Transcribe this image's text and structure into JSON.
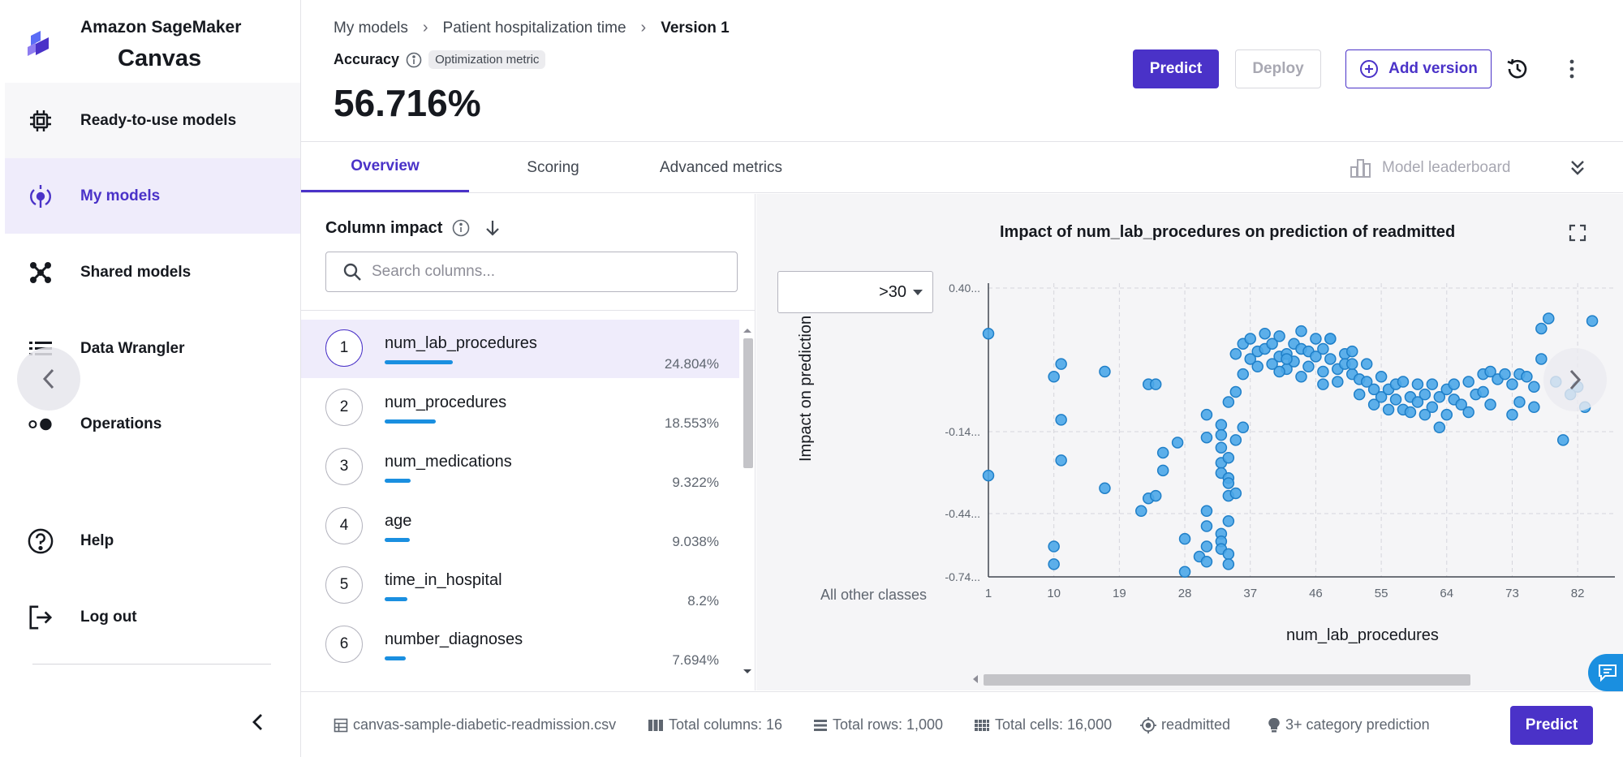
{
  "brand": {
    "line1": "Amazon SageMaker",
    "line2": "Canvas"
  },
  "sidebar": {
    "items": [
      {
        "label": "Ready-to-use models",
        "icon": "chip-icon"
      },
      {
        "label": "My models",
        "icon": "my-models-icon"
      },
      {
        "label": "Shared models",
        "icon": "shared-models-icon"
      },
      {
        "label": "Data Wrangler",
        "icon": "data-wrangler-icon"
      },
      {
        "label": "Operations",
        "icon": "toggle-icon"
      },
      {
        "label": "Help",
        "icon": "help-icon"
      },
      {
        "label": "Log out",
        "icon": "logout-icon"
      }
    ]
  },
  "header": {
    "breadcrumb": [
      "My models",
      "Patient hospitalization time",
      "Version 1"
    ],
    "metric_label": "Accuracy",
    "metric_badge": "Optimization metric",
    "metric_value": "56.716%",
    "predict_label": "Predict",
    "deploy_label": "Deploy",
    "add_version_label": "Add version"
  },
  "tabs": {
    "overview": "Overview",
    "scoring": "Scoring",
    "advanced": "Advanced metrics",
    "leaderboard": "Model leaderboard"
  },
  "impact": {
    "title": "Column impact",
    "search_placeholder": "Search columns...",
    "columns": [
      {
        "rank": "1",
        "name": "num_lab_procedures",
        "pct": "24.804%",
        "value": 24.804
      },
      {
        "rank": "2",
        "name": "num_procedures",
        "pct": "18.553%",
        "value": 18.553
      },
      {
        "rank": "3",
        "name": "num_medications",
        "pct": "9.322%",
        "value": 9.322
      },
      {
        "rank": "4",
        "name": "age",
        "pct": "9.038%",
        "value": 9.038
      },
      {
        "rank": "5",
        "name": "time_in_hospital",
        "pct": "8.2%",
        "value": 8.2
      },
      {
        "rank": "6",
        "name": "number_diagnoses",
        "pct": "7.694%",
        "value": 7.694
      }
    ]
  },
  "chart": {
    "select_value": ">30",
    "other_classes": "All other classes"
  },
  "chart_data": {
    "type": "scatter",
    "title": "Impact of num_lab_procedures on prediction of readmitted",
    "xlabel": "num_lab_procedures",
    "ylabel": "Impact on prediction",
    "xlim": [
      1,
      86
    ],
    "ylim": [
      -0.74,
      0.4
    ],
    "x_ticks": [
      "1",
      "10",
      "19",
      "28",
      "37",
      "46",
      "55",
      "64",
      "73",
      "82"
    ],
    "y_ticks": [
      "0.40...",
      "-0.14...",
      "-0.44...",
      "-0.74..."
    ],
    "grid": true,
    "series": [
      {
        "points": [
          [
            1,
            0.22
          ],
          [
            1,
            -0.34
          ],
          [
            10,
            -0.62
          ],
          [
            10,
            -0.69
          ],
          [
            10,
            0.05
          ],
          [
            11,
            0.1
          ],
          [
            11,
            -0.12
          ],
          [
            11,
            -0.28
          ],
          [
            17,
            0.07
          ],
          [
            17,
            -0.39
          ],
          [
            23,
            0.02
          ],
          [
            24,
            0.02
          ],
          [
            22,
            -0.48
          ],
          [
            23,
            -0.43
          ],
          [
            24,
            -0.42
          ],
          [
            25,
            -0.32
          ],
          [
            25,
            -0.25
          ],
          [
            27,
            -0.21
          ],
          [
            28,
            -0.59
          ],
          [
            28,
            -0.72
          ],
          [
            30,
            -0.66
          ],
          [
            31,
            -0.48
          ],
          [
            31,
            -0.54
          ],
          [
            31,
            -0.62
          ],
          [
            31,
            -0.68
          ],
          [
            31,
            -0.19
          ],
          [
            31,
            -0.1
          ],
          [
            33,
            -0.14
          ],
          [
            33,
            -0.18
          ],
          [
            33,
            -0.23
          ],
          [
            33,
            -0.29
          ],
          [
            33,
            -0.33
          ],
          [
            33,
            -0.57
          ],
          [
            33,
            -0.6
          ],
          [
            33,
            -0.63
          ],
          [
            34,
            -0.52
          ],
          [
            34,
            -0.65
          ],
          [
            34,
            -0.69
          ],
          [
            34,
            -0.35
          ],
          [
            34,
            -0.37
          ],
          [
            34,
            -0.42
          ],
          [
            35,
            -0.41
          ],
          [
            35,
            -0.2
          ],
          [
            34,
            -0.27
          ],
          [
            34,
            -0.05
          ],
          [
            35,
            -0.01
          ],
          [
            36,
            -0.15
          ],
          [
            35,
            0.14
          ],
          [
            36,
            0.18
          ],
          [
            37,
            0.12
          ],
          [
            37,
            0.2
          ],
          [
            38,
            0.15
          ],
          [
            38,
            0.09
          ],
          [
            39,
            0.16
          ],
          [
            39,
            0.22
          ],
          [
            40,
            0.1
          ],
          [
            40,
            0.18
          ],
          [
            41,
            0.13
          ],
          [
            41,
            0.21
          ],
          [
            42,
            0.14
          ],
          [
            42,
            0.08
          ],
          [
            43,
            0.18
          ],
          [
            43,
            0.11
          ],
          [
            44,
            0.16
          ],
          [
            44,
            0.23
          ],
          [
            45,
            0.15
          ],
          [
            45,
            0.09
          ],
          [
            46,
            0.13
          ],
          [
            46,
            0.2
          ],
          [
            47,
            0.07
          ],
          [
            47,
            0.16
          ],
          [
            48,
            0.12
          ],
          [
            48,
            0.2
          ],
          [
            49,
            0.08
          ],
          [
            49,
            0.03
          ],
          [
            50,
            0.14
          ],
          [
            50,
            0.1
          ],
          [
            51,
            0.06
          ],
          [
            51,
            0.15
          ],
          [
            52,
            0.04
          ],
          [
            52,
            -0.02
          ],
          [
            53,
            0.03
          ],
          [
            53,
            0.1
          ],
          [
            54,
            0.0
          ],
          [
            54,
            -0.06
          ],
          [
            55,
            0.05
          ],
          [
            55,
            -0.03
          ],
          [
            56,
            -0.08
          ],
          [
            56,
            0.0
          ],
          [
            57,
            -0.04
          ],
          [
            57,
            0.02
          ],
          [
            58,
            -0.08
          ],
          [
            58,
            0.03
          ],
          [
            59,
            -0.03
          ],
          [
            59,
            -0.09
          ],
          [
            60,
            0.02
          ],
          [
            60,
            -0.05
          ],
          [
            61,
            -0.1
          ],
          [
            61,
            -0.02
          ],
          [
            62,
            0.02
          ],
          [
            62,
            -0.07
          ],
          [
            63,
            -0.03
          ],
          [
            63,
            -0.15
          ],
          [
            64,
            0.0
          ],
          [
            64,
            -0.1
          ],
          [
            65,
            -0.04
          ],
          [
            65,
            0.02
          ],
          [
            66,
            -0.06
          ],
          [
            67,
            0.03
          ],
          [
            67,
            -0.09
          ],
          [
            68,
            -0.02
          ],
          [
            69,
            0.06
          ],
          [
            69,
            -0.01
          ],
          [
            70,
            0.07
          ],
          [
            70,
            -0.06
          ],
          [
            71,
            0.04
          ],
          [
            72,
            0.06
          ],
          [
            73,
            0.02
          ],
          [
            73,
            -0.1
          ],
          [
            74,
            0.06
          ],
          [
            74,
            -0.05
          ],
          [
            75,
            0.05
          ],
          [
            76,
            0.01
          ],
          [
            76,
            -0.07
          ],
          [
            77,
            0.12
          ],
          [
            77,
            0.24
          ],
          [
            78,
            0.28
          ],
          [
            79,
            0.03
          ],
          [
            80,
            -0.2
          ],
          [
            81,
            -0.02
          ],
          [
            82,
            0.01
          ],
          [
            83,
            -0.07
          ],
          [
            84,
            0.27
          ],
          [
            48,
            0.2
          ],
          [
            51,
            0.1
          ],
          [
            36,
            0.06
          ],
          [
            41,
            0.07
          ],
          [
            42,
            0.12
          ],
          [
            44,
            0.05
          ],
          [
            47,
            0.02
          ]
        ]
      }
    ]
  },
  "footer": {
    "file": "canvas-sample-diabetic-readmission.csv",
    "columns": "Total columns: 16",
    "rows": "Total rows: 1,000",
    "cells": "Total cells: 16,000",
    "target": "readmitted",
    "type": "3+ category prediction",
    "predict_label": "Predict"
  }
}
